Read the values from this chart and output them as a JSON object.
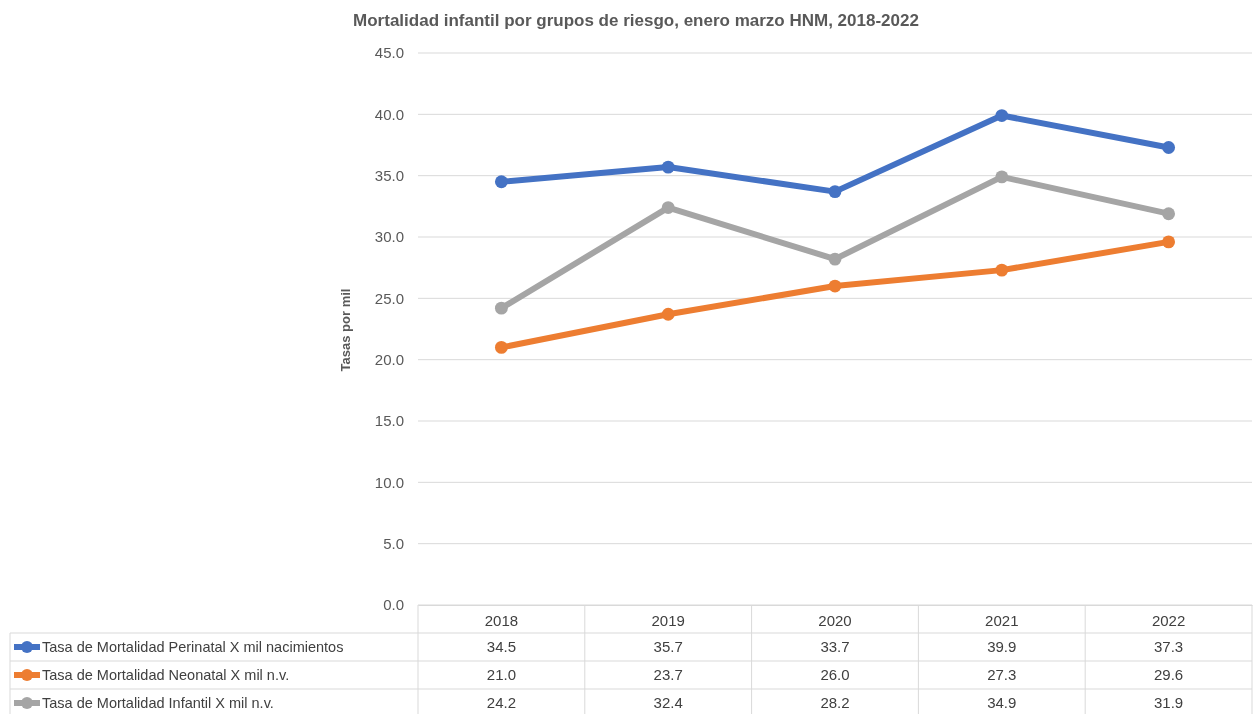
{
  "chart_data": {
    "type": "line",
    "title": "Mortalidad infantil por grupos de riesgo, enero marzo HNM, 2018-2022",
    "ylabel": "Tasas por mil",
    "categories": [
      "2018",
      "2019",
      "2020",
      "2021",
      "2022"
    ],
    "ylim": [
      0,
      45
    ],
    "yticks": [
      {
        "value": 0,
        "label": "0.0"
      },
      {
        "value": 5,
        "label": "5.0"
      },
      {
        "value": 10,
        "label": "10.0"
      },
      {
        "value": 15,
        "label": "15.0"
      },
      {
        "value": 20,
        "label": "20.0"
      },
      {
        "value": 25,
        "label": "25.0"
      },
      {
        "value": 30,
        "label": "30.0"
      },
      {
        "value": 35,
        "label": "35.0"
      },
      {
        "value": 40,
        "label": "40.0"
      },
      {
        "value": 45,
        "label": "45.0"
      }
    ],
    "grid": "y",
    "legend": "bottom",
    "marker": "circle",
    "line_style": "solid",
    "series": [
      {
        "name": "Tasa de Mortalidad Perinatal X mil nacimientos",
        "color": "#4472c4",
        "values": [
          34.5,
          35.7,
          33.7,
          39.9,
          37.3
        ],
        "value_labels": [
          "34.5",
          "35.7",
          "33.7",
          "39.9",
          "37.3"
        ]
      },
      {
        "name": "Tasa de Mortalidad Neonatal X mil n.v.",
        "color": "#ed7d31",
        "values": [
          21.0,
          23.7,
          26.0,
          27.3,
          29.6
        ],
        "value_labels": [
          "21.0",
          "23.7",
          "26.0",
          "27.3",
          "29.6"
        ]
      },
      {
        "name": "Tasa de Mortalidad Infantil X mil n.v.",
        "color": "#a5a5a5",
        "values": [
          24.2,
          32.4,
          28.2,
          34.9,
          31.9
        ],
        "value_labels": [
          "24.2",
          "32.4",
          "28.2",
          "34.9",
          "31.9"
        ]
      }
    ]
  }
}
